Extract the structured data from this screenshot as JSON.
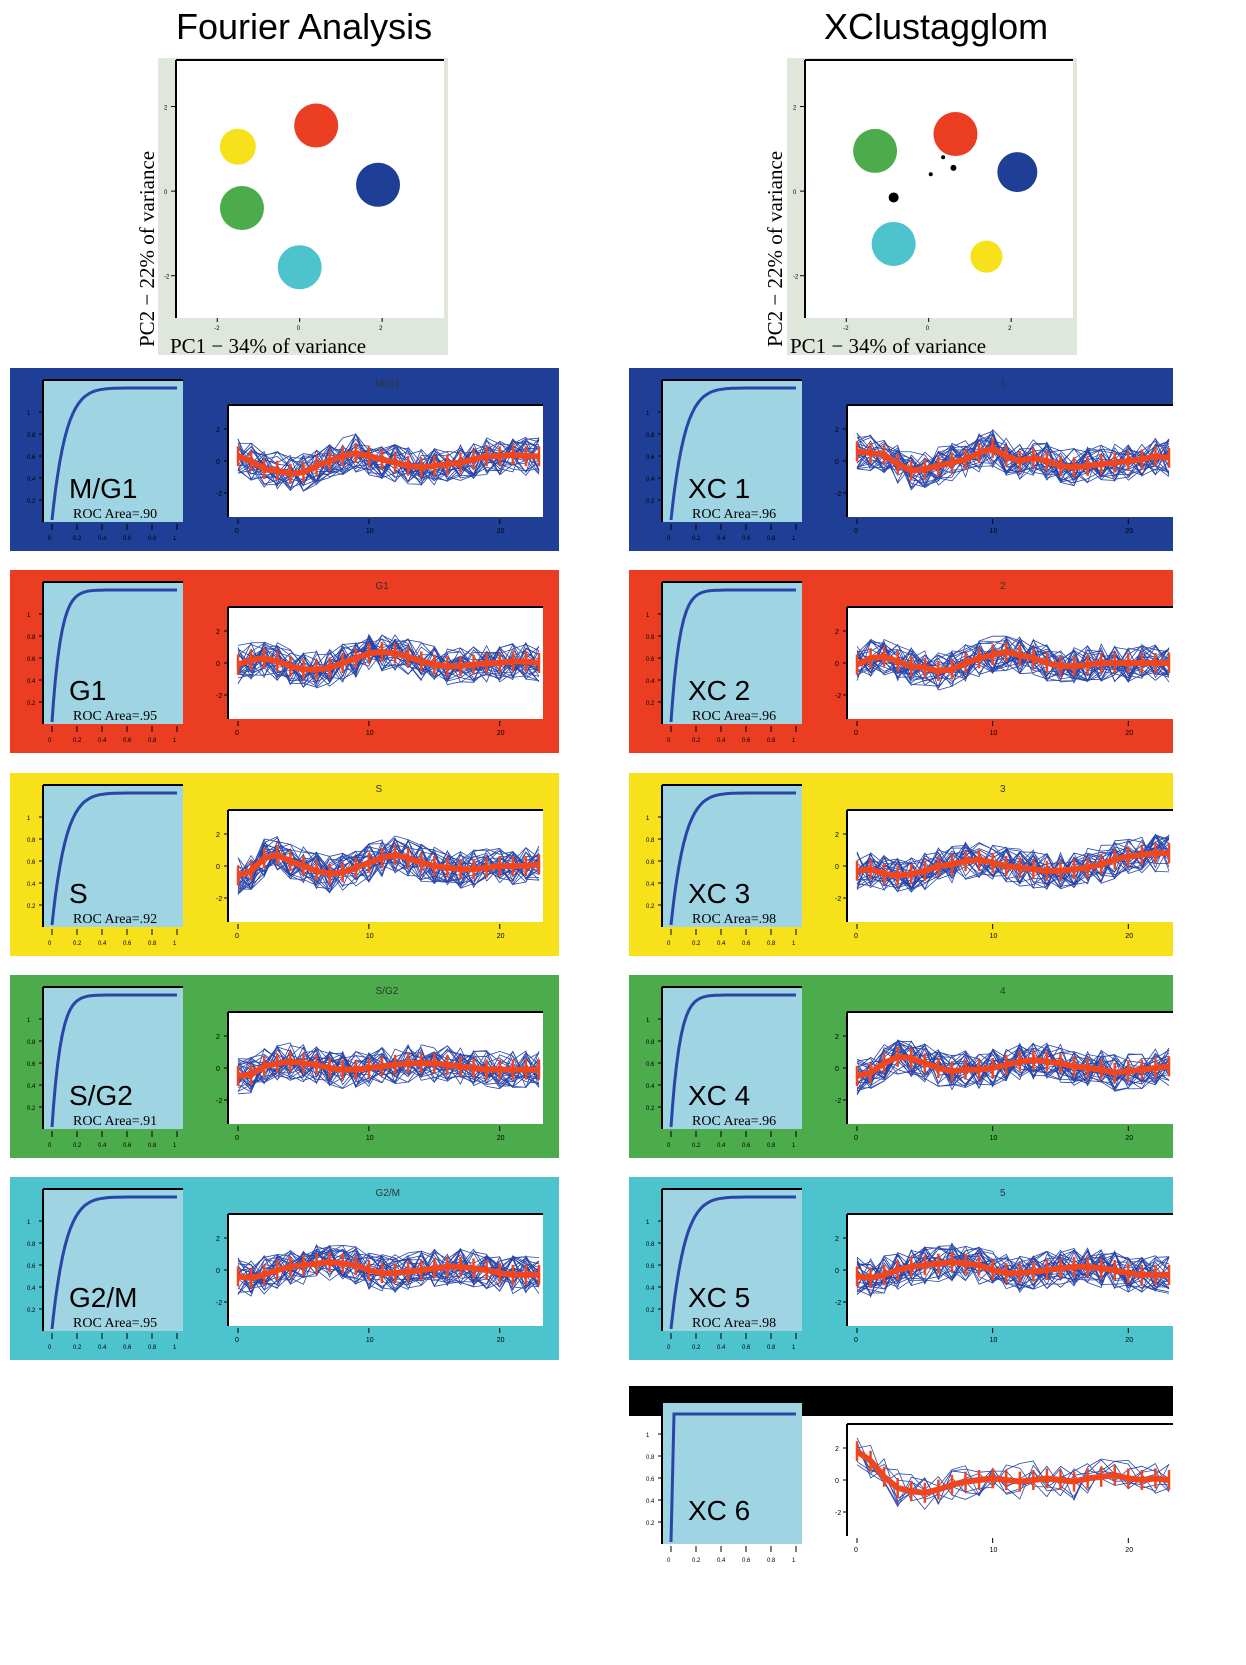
{
  "left_title": "Fourier Analysis",
  "right_title": "XClustagglom",
  "pca_xlabel": "PC1 − 34% of variance",
  "pca_ylabel": "PC2 − 22% of variance",
  "colors": {
    "blue": "#1f3f96",
    "red": "#ea3d22",
    "yellow": "#f6e11b",
    "green": "#4cac4c",
    "cyan": "#4dc3cd",
    "black": "#000000",
    "roc_fill": "#9fd4e3",
    "line_blue": "#2a45a8",
    "mean_red": "#f0461f"
  },
  "chart_data": [
    {
      "type": "scatter",
      "title": "Fourier Analysis",
      "xlabel": "PC1 − 34% of variance",
      "ylabel": "PC2 − 22% of variance",
      "xlim": [
        -3,
        3.5
      ],
      "ylim": [
        -3,
        3.1
      ],
      "xticks": [
        "-2",
        "0",
        "2"
      ],
      "yticks": [
        "2",
        "0",
        "-2"
      ],
      "points": [
        {
          "x": 0.4,
          "y": 1.55,
          "r": 22,
          "color": "red"
        },
        {
          "x": -1.5,
          "y": 1.05,
          "r": 18,
          "color": "yellow"
        },
        {
          "x": 1.9,
          "y": 0.15,
          "r": 22,
          "color": "blue"
        },
        {
          "x": -1.4,
          "y": -0.4,
          "r": 22,
          "color": "green"
        },
        {
          "x": 0.0,
          "y": -1.8,
          "r": 22,
          "color": "cyan"
        }
      ]
    },
    {
      "type": "scatter",
      "title": "XClustagglom",
      "xlabel": "PC1 − 34% of variance",
      "ylabel": "PC2 − 22% of variance",
      "xlim": [
        -3,
        3.5
      ],
      "ylim": [
        -3,
        3.1
      ],
      "xticks": [
        "-2",
        "0",
        "2"
      ],
      "yticks": [
        "2",
        "0",
        "-2"
      ],
      "points": [
        {
          "x": 0.65,
          "y": 1.35,
          "r": 22,
          "color": "red"
        },
        {
          "x": -1.3,
          "y": 0.95,
          "r": 22,
          "color": "green"
        },
        {
          "x": 2.15,
          "y": 0.45,
          "r": 20,
          "color": "blue"
        },
        {
          "x": -0.85,
          "y": -1.25,
          "r": 22,
          "color": "cyan"
        },
        {
          "x": 1.4,
          "y": -1.55,
          "r": 16,
          "color": "yellow"
        },
        {
          "x": -0.85,
          "y": -0.15,
          "r": 5,
          "color": "black"
        },
        {
          "x": 0.35,
          "y": 0.8,
          "r": 2,
          "color": "black"
        },
        {
          "x": 0.6,
          "y": 0.55,
          "r": 3,
          "color": "black"
        },
        {
          "x": 0.05,
          "y": 0.4,
          "r": 2,
          "color": "black"
        }
      ]
    },
    {
      "type": "panels",
      "roc_ticks": [
        "0",
        "0.2",
        "0.4",
        "0.6",
        "0.8",
        "1"
      ],
      "ts_yticks": [
        "2",
        "0",
        "-2"
      ],
      "ts_xticks": [
        "0",
        "10",
        "20"
      ],
      "left": [
        {
          "bg": "blue",
          "name": "M/G1",
          "roc": "ROC Area=.90",
          "ts_title": "M/G1",
          "mean": [
            0.3,
            0.0,
            -0.5,
            -0.6,
            -0.8,
            -0.7,
            -0.3,
            0.0,
            0.3,
            0.5,
            0.3,
            0.1,
            -0.1,
            -0.3,
            -0.4,
            -0.3,
            -0.2,
            -0.1,
            0.1,
            0.3,
            0.3,
            0.4,
            0.3,
            0.3
          ]
        },
        {
          "bg": "red",
          "name": "G1",
          "roc": "ROC Area=.95",
          "ts_title": "G1",
          "mean": [
            -0.1,
            0.2,
            0.3,
            0.1,
            -0.2,
            -0.4,
            -0.4,
            -0.3,
            0.0,
            0.3,
            0.6,
            0.7,
            0.6,
            0.4,
            0.1,
            -0.1,
            -0.2,
            -0.2,
            -0.1,
            0.0,
            0.0,
            0.1,
            0.1,
            0.0
          ]
        },
        {
          "bg": "yellow",
          "name": "S",
          "roc": "ROC Area=.92",
          "ts_title": "S",
          "mean": [
            -0.6,
            -0.3,
            0.5,
            0.7,
            0.3,
            0.0,
            -0.3,
            -0.5,
            -0.4,
            -0.1,
            0.2,
            0.5,
            0.7,
            0.5,
            0.2,
            0.0,
            -0.1,
            -0.2,
            -0.2,
            -0.1,
            0.0,
            0.0,
            0.0,
            0.1
          ]
        },
        {
          "bg": "green",
          "name": "S/G2",
          "roc": "ROC Area=.91",
          "ts_title": "S/G2",
          "mean": [
            -0.5,
            -0.4,
            0.1,
            0.3,
            0.4,
            0.3,
            0.2,
            0.0,
            -0.1,
            -0.1,
            0.0,
            0.1,
            0.2,
            0.3,
            0.3,
            0.3,
            0.2,
            0.1,
            0.0,
            -0.1,
            -0.1,
            -0.1,
            -0.1,
            -0.1
          ]
        },
        {
          "bg": "cyan",
          "name": "G2/M",
          "roc": "ROC Area=.95",
          "ts_title": "G2/M",
          "mean": [
            -0.4,
            -0.5,
            -0.3,
            0.0,
            0.2,
            0.3,
            0.4,
            0.5,
            0.4,
            0.3,
            0.0,
            -0.2,
            -0.2,
            -0.1,
            0.0,
            0.1,
            0.2,
            0.2,
            0.1,
            0.0,
            -0.2,
            -0.3,
            -0.3,
            -0.3
          ]
        }
      ],
      "right": [
        {
          "bg": "blue",
          "name": "XC 1",
          "roc": "ROC Area=.96",
          "ts_title": "1",
          "mean": [
            0.6,
            0.5,
            0.4,
            -0.2,
            -0.6,
            -0.5,
            -0.3,
            -0.1,
            0.1,
            0.5,
            0.8,
            0.3,
            0.0,
            0.2,
            0.0,
            -0.3,
            -0.4,
            -0.3,
            -0.2,
            -0.1,
            0.0,
            0.1,
            0.3,
            0.2
          ]
        },
        {
          "bg": "red",
          "name": "XC 2",
          "roc": "ROC Area=.96",
          "ts_title": "2",
          "mean": [
            -0.1,
            0.3,
            0.4,
            0.1,
            -0.2,
            -0.3,
            -0.5,
            -0.4,
            0.0,
            0.3,
            0.5,
            0.7,
            0.5,
            0.3,
            0.0,
            -0.2,
            -0.2,
            -0.1,
            0.0,
            0.0,
            0.0,
            0.0,
            0.0,
            0.0
          ]
        },
        {
          "bg": "yellow",
          "name": "XC 3",
          "roc": "ROC Area=.98",
          "ts_title": "3",
          "mean": [
            -0.3,
            -0.2,
            -0.5,
            -0.6,
            -0.5,
            -0.3,
            0.0,
            0.1,
            0.3,
            0.4,
            0.2,
            0.0,
            -0.1,
            -0.2,
            -0.3,
            -0.3,
            -0.2,
            -0.1,
            0.1,
            0.4,
            0.6,
            0.7,
            0.8,
            0.8
          ]
        },
        {
          "bg": "green",
          "name": "XC 4",
          "roc": "ROC Area=.96",
          "ts_title": "4",
          "mean": [
            -0.5,
            -0.3,
            0.3,
            0.7,
            0.6,
            0.3,
            0.0,
            -0.2,
            -0.1,
            -0.1,
            0.0,
            0.2,
            0.4,
            0.5,
            0.4,
            0.3,
            0.1,
            0.0,
            -0.1,
            -0.3,
            -0.2,
            -0.1,
            0.0,
            0.1
          ]
        },
        {
          "bg": "cyan",
          "name": "XC 5",
          "roc": "ROC Area=.98",
          "ts_title": "5",
          "mean": [
            -0.4,
            -0.5,
            -0.3,
            0.0,
            0.2,
            0.3,
            0.4,
            0.5,
            0.4,
            0.3,
            0.0,
            -0.2,
            -0.2,
            -0.1,
            0.0,
            0.1,
            0.2,
            0.2,
            0.1,
            0.0,
            -0.2,
            -0.3,
            -0.3,
            -0.3
          ]
        },
        {
          "bg": "black",
          "name": "XC 6",
          "roc": "",
          "ts_title": "",
          "mean": [
            1.8,
            1.2,
            0.2,
            -0.5,
            -0.7,
            -0.8,
            -0.6,
            -0.3,
            -0.1,
            0.0,
            0.1,
            0.0,
            -0.1,
            0.0,
            0.1,
            0.0,
            -0.1,
            0.1,
            0.2,
            0.3,
            0.1,
            0.0,
            0.1,
            0.0
          ]
        }
      ]
    }
  ]
}
